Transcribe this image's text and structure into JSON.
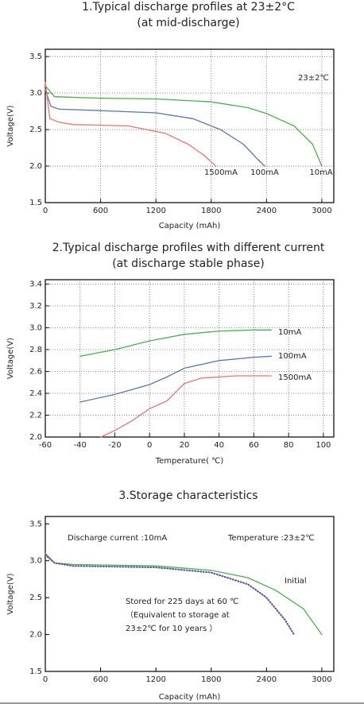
{
  "chart_data": [
    {
      "type": "line",
      "title": "1.Typical discharge profiles at 23±2°C",
      "subtitle": "(at mid-discharge)",
      "x_label": "Capacity (mAh)",
      "y_label": "Voltage(V)",
      "xlim": [
        0,
        3130
      ],
      "ylim": [
        1.5,
        3.6
      ],
      "xticks": [
        0,
        600,
        1200,
        1800,
        2400,
        3000
      ],
      "yticks": [
        1.5,
        {
          "value": 2,
          "label": "2.0"
        },
        2.5,
        {
          "value": 3,
          "label": "3.0"
        },
        3.5
      ],
      "grid": true,
      "annotations": [
        "23±2℃"
      ],
      "series": [
        {
          "name": "10mA",
          "color": "#4cb04a",
          "x": [
            0,
            100,
            600,
            1200,
            1800,
            2200,
            2400,
            2700,
            2900,
            3000
          ],
          "values": [
            3.1,
            2.95,
            2.93,
            2.92,
            2.88,
            2.8,
            2.72,
            2.55,
            2.3,
            2.0
          ]
        },
        {
          "name": "100mA",
          "color": "#5876b4",
          "x": [
            0,
            60,
            150,
            600,
            1200,
            1600,
            1900,
            2150,
            2300,
            2380
          ],
          "values": [
            3.05,
            2.82,
            2.78,
            2.76,
            2.73,
            2.65,
            2.5,
            2.3,
            2.1,
            2.0
          ]
        },
        {
          "name": "1500mA",
          "color": "#ee7373",
          "x": [
            0,
            50,
            150,
            300,
            900,
            1300,
            1550,
            1720,
            1850
          ],
          "values": [
            3.15,
            2.65,
            2.6,
            2.57,
            2.55,
            2.45,
            2.3,
            2.15,
            2.0
          ]
        }
      ]
    },
    {
      "type": "line",
      "title": "2.Typical discharge profiles with different current",
      "subtitle": "(at discharge stable phase)",
      "x_label": "Temperature( ℃)",
      "y_label": "Voltage(V)",
      "xlim": [
        -60,
        106
      ],
      "ylim": [
        2.0,
        3.44
      ],
      "xticks": [
        -60,
        -40,
        -20,
        0,
        20,
        40,
        60,
        80,
        100
      ],
      "yticks": [
        {
          "value": 2,
          "label": "2.0"
        },
        2.2,
        2.4,
        2.6,
        2.8,
        {
          "value": 3,
          "label": "3.0"
        },
        3.2,
        3.4
      ],
      "grid": true,
      "series": [
        {
          "name": "10mA",
          "color": "#4cb04a",
          "x": [
            -40,
            -20,
            0,
            20,
            40,
            60,
            70
          ],
          "values": [
            2.74,
            2.8,
            2.88,
            2.94,
            2.97,
            2.98,
            2.98
          ]
        },
        {
          "name": "100mA",
          "color": "#5876b4",
          "x": [
            -40,
            -20,
            0,
            10,
            20,
            40,
            60,
            70
          ],
          "values": [
            2.32,
            2.39,
            2.48,
            2.55,
            2.63,
            2.7,
            2.73,
            2.74
          ]
        },
        {
          "name": "1500mA",
          "color": "#ee7373",
          "x": [
            -28,
            -20,
            -10,
            0,
            10,
            20,
            30,
            50,
            70
          ],
          "values": [
            2.0,
            2.06,
            2.15,
            2.26,
            2.33,
            2.49,
            2.54,
            2.56,
            2.56
          ]
        }
      ]
    },
    {
      "type": "line",
      "title": "3.Storage characteristics",
      "x_label": "Capacity (mAh)",
      "y_label": "Voltage(V)",
      "xlim": [
        0,
        3130
      ],
      "ylim": [
        1.5,
        3.6
      ],
      "xticks": [
        0,
        600,
        1200,
        1800,
        2400,
        3000
      ],
      "yticks": [
        1.5,
        {
          "value": 2,
          "label": "2.0"
        },
        2.5,
        {
          "value": 3,
          "label": "3.0"
        },
        3.5
      ],
      "grid": false,
      "annotations": [
        "Discharge current :10mA",
        "Temperature :23±2℃",
        "（Equivalent to storage at",
        "23±2℃ for 10 years ）"
      ],
      "series": [
        {
          "name": "Initial",
          "color": "#4cb04a",
          "x": [
            0,
            100,
            300,
            1200,
            1800,
            2200,
            2500,
            2800,
            3000
          ],
          "values": [
            3.1,
            2.97,
            2.95,
            2.93,
            2.87,
            2.77,
            2.6,
            2.35,
            2.0
          ]
        },
        {
          "name": "Stored for 225 days at 60 ℃",
          "color": "#5a4aa0",
          "dotted": true,
          "x": [
            0,
            100,
            300,
            1200,
            1800,
            2200,
            2400,
            2600,
            2700
          ],
          "values": [
            3.08,
            2.97,
            2.93,
            2.91,
            2.84,
            2.68,
            2.5,
            2.2,
            2.0
          ]
        }
      ]
    }
  ]
}
